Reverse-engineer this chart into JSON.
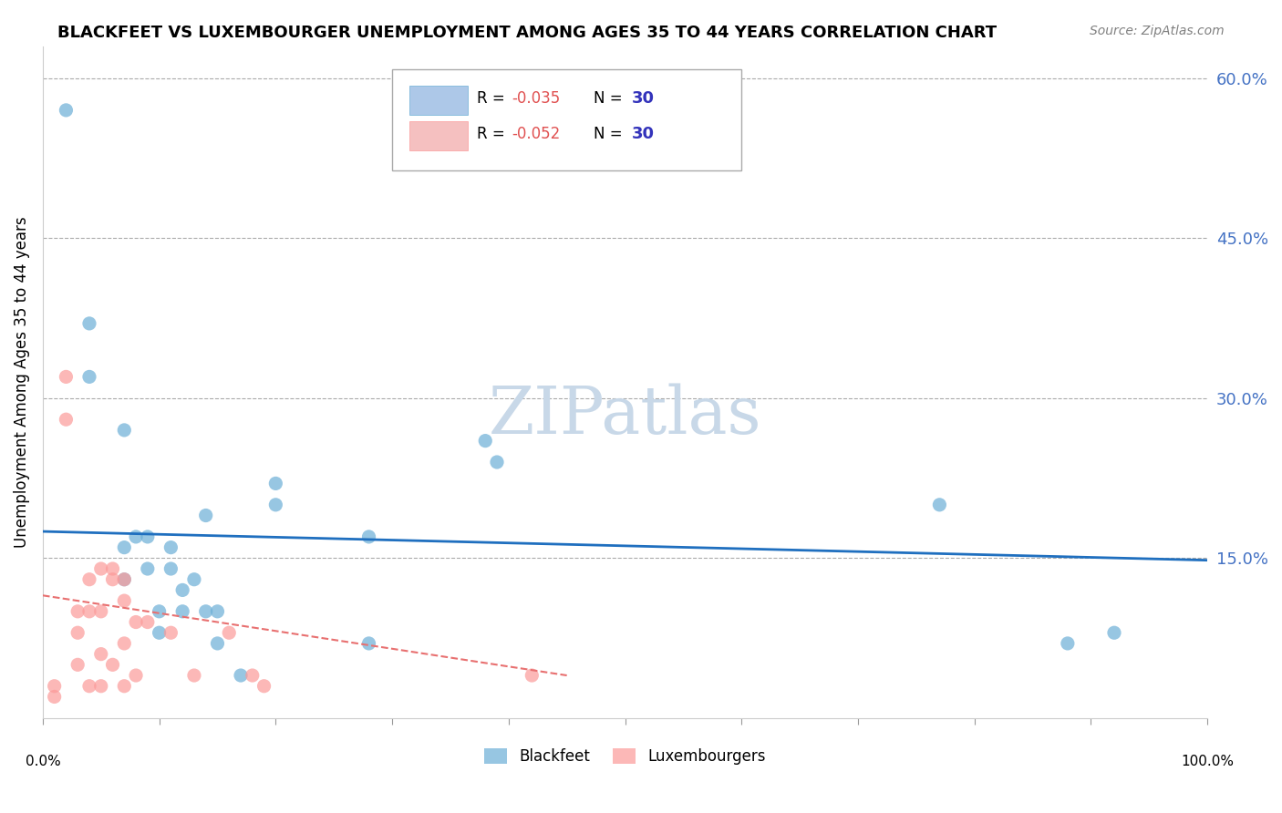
{
  "title": "BLACKFEET VS LUXEMBOURGER UNEMPLOYMENT AMONG AGES 35 TO 44 YEARS CORRELATION CHART",
  "source": "Source: ZipAtlas.com",
  "ylabel": "Unemployment Among Ages 35 to 44 years",
  "legend_label_blue": "Blackfeet",
  "legend_label_pink": "Luxembourgers",
  "blue_color": "#6baed6",
  "pink_color": "#fb9a99",
  "trend_blue_color": "#1f6fbf",
  "trend_pink_color": "#e87070",
  "watermark_color": "#c8d8e8",
  "xlim": [
    0.0,
    1.0
  ],
  "ylim": [
    0.0,
    0.63
  ],
  "blue_x": [
    0.02,
    0.04,
    0.04,
    0.07,
    0.07,
    0.07,
    0.08,
    0.09,
    0.09,
    0.1,
    0.1,
    0.11,
    0.11,
    0.12,
    0.12,
    0.13,
    0.14,
    0.14,
    0.15,
    0.15,
    0.17,
    0.2,
    0.2,
    0.28,
    0.28,
    0.38,
    0.39,
    0.77,
    0.88,
    0.92
  ],
  "blue_y": [
    0.57,
    0.37,
    0.32,
    0.27,
    0.16,
    0.13,
    0.17,
    0.17,
    0.14,
    0.1,
    0.08,
    0.16,
    0.14,
    0.12,
    0.1,
    0.13,
    0.19,
    0.1,
    0.1,
    0.07,
    0.04,
    0.22,
    0.2,
    0.17,
    0.07,
    0.26,
    0.24,
    0.2,
    0.07,
    0.08
  ],
  "pink_x": [
    0.01,
    0.01,
    0.02,
    0.02,
    0.03,
    0.03,
    0.03,
    0.04,
    0.04,
    0.04,
    0.05,
    0.05,
    0.05,
    0.05,
    0.06,
    0.06,
    0.06,
    0.07,
    0.07,
    0.07,
    0.07,
    0.08,
    0.08,
    0.09,
    0.11,
    0.13,
    0.16,
    0.18,
    0.19,
    0.42
  ],
  "pink_y": [
    0.03,
    0.02,
    0.32,
    0.28,
    0.1,
    0.08,
    0.05,
    0.13,
    0.1,
    0.03,
    0.14,
    0.1,
    0.06,
    0.03,
    0.14,
    0.13,
    0.05,
    0.13,
    0.11,
    0.07,
    0.03,
    0.09,
    0.04,
    0.09,
    0.08,
    0.04,
    0.08,
    0.04,
    0.03,
    0.04
  ],
  "blue_trend_x": [
    0.0,
    1.0
  ],
  "blue_trend_y_start": 0.175,
  "blue_trend_y_end": 0.148,
  "pink_trend_x": [
    0.0,
    0.45
  ],
  "pink_trend_y_start": 0.115,
  "pink_trend_y_end": 0.04,
  "marker_size": 120,
  "ytick_vals": [
    0.15,
    0.3,
    0.45,
    0.6
  ],
  "ytick_labels": [
    "15.0%",
    "30.0%",
    "45.0%",
    "60.0%"
  ],
  "xtick_vals": [
    0.0,
    0.1,
    0.2,
    0.3,
    0.4,
    0.5,
    0.6,
    0.7,
    0.8,
    0.9,
    1.0
  ]
}
